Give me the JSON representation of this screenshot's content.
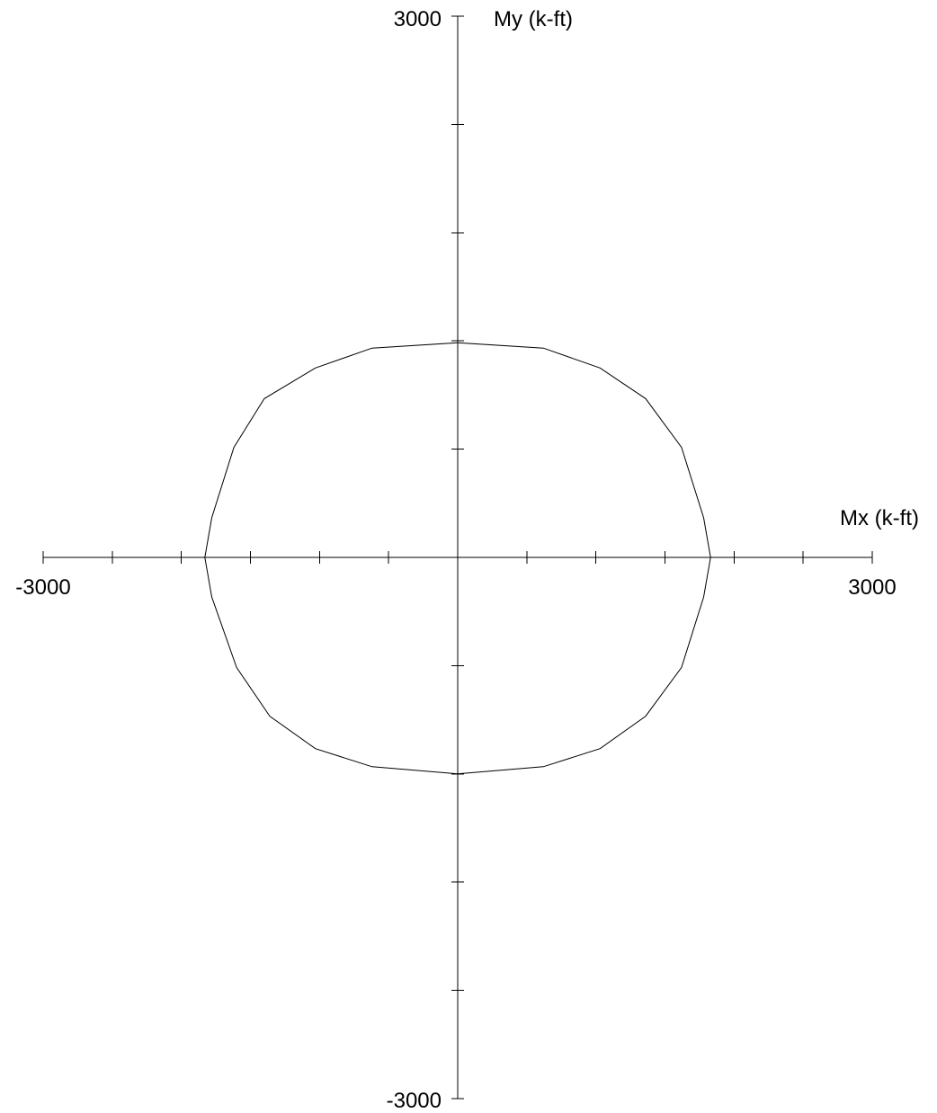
{
  "chart_data": {
    "type": "line",
    "title": "",
    "xlabel": "Mx (k-ft)",
    "ylabel": "My (k-ft)",
    "xlim": [
      -3000,
      3000
    ],
    "ylim": [
      -3000,
      3000
    ],
    "x_tick_labels": [
      "-3000",
      "3000"
    ],
    "y_tick_labels": [
      "3000",
      "-3000"
    ],
    "x_minor_step": 500,
    "y_minor_step": 600,
    "grid": false,
    "legend": "none",
    "series": [
      {
        "points": [
          [
            0,
            1190
          ],
          [
            620,
            1160
          ],
          [
            1030,
            1050
          ],
          [
            1360,
            880
          ],
          [
            1620,
            610
          ],
          [
            1780,
            220
          ],
          [
            1830,
            0
          ],
          [
            1780,
            -220
          ],
          [
            1620,
            -610
          ],
          [
            1360,
            -880
          ],
          [
            1030,
            -1060
          ],
          [
            620,
            -1160
          ],
          [
            0,
            -1200
          ],
          [
            -620,
            -1160
          ],
          [
            -1030,
            -1060
          ],
          [
            -1360,
            -880
          ],
          [
            -1600,
            -610
          ],
          [
            -1780,
            -220
          ],
          [
            -1830,
            0
          ],
          [
            -1780,
            220
          ],
          [
            -1620,
            610
          ],
          [
            -1400,
            880
          ],
          [
            -1030,
            1050
          ],
          [
            -620,
            1160
          ],
          [
            0,
            1190
          ]
        ]
      }
    ],
    "colors": {
      "line": "#000000",
      "axis": "#000000"
    }
  }
}
